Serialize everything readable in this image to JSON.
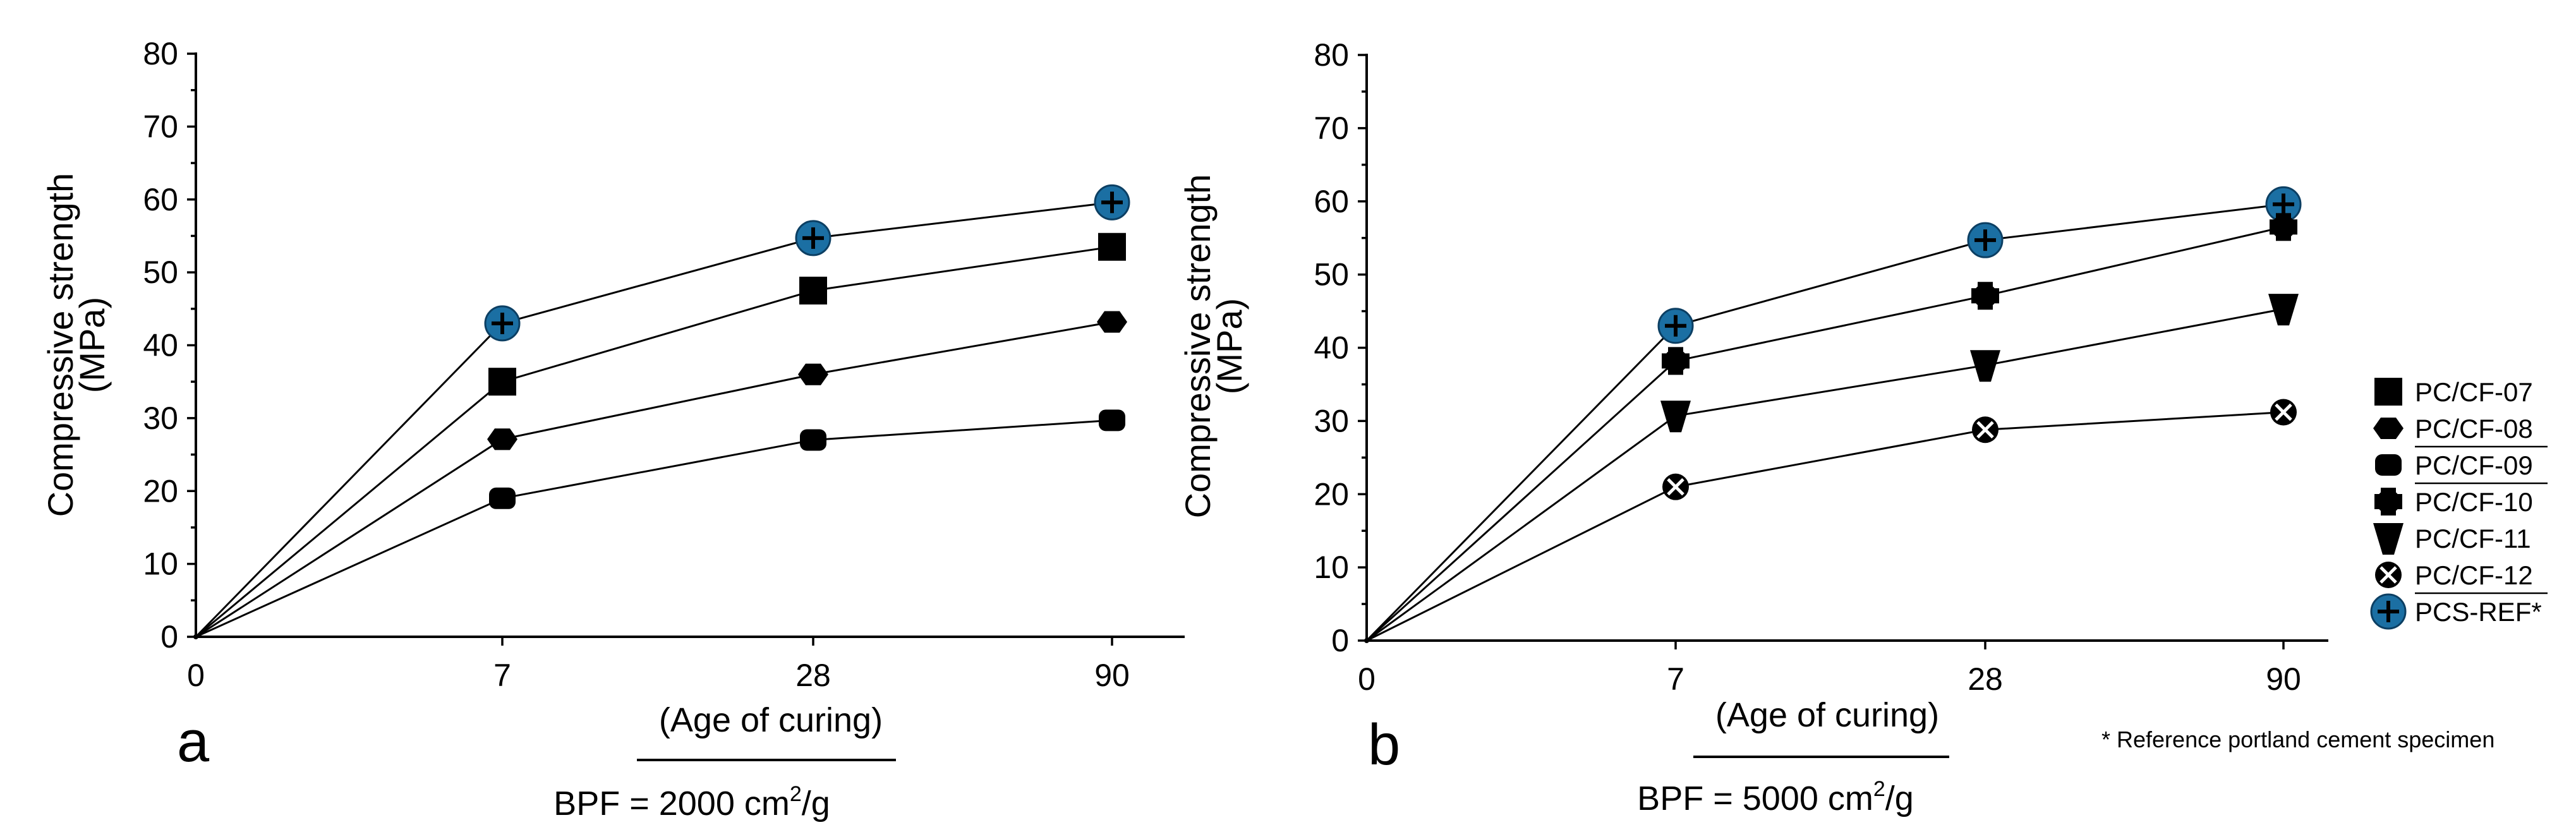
{
  "chart_data": [
    {
      "type": "line",
      "panel_label": "a",
      "caption": "BPF = 2000 cm²/g",
      "caption_parts": {
        "lead": "BPF = 2000 cm",
        "sup": "2",
        "tail": "/g"
      },
      "xlabel": "(Age of curing)",
      "ylabel": [
        "Compressive strength",
        "(MPa)"
      ],
      "categories": [
        "0",
        "7",
        "28",
        "90"
      ],
      "ylim": [
        0,
        80
      ],
      "yticks": [
        "0",
        "10",
        "20",
        "30",
        "40",
        "50",
        "60",
        "70",
        "80"
      ],
      "series": [
        {
          "name": "PCS-REF*",
          "marker": "ref",
          "values": [
            0,
            43,
            54.7,
            59.6
          ]
        },
        {
          "name": "PC/CF-07",
          "marker": "square",
          "values": [
            0,
            35,
            47.5,
            53.5
          ]
        },
        {
          "name": "PC/CF-08",
          "marker": "hexagon",
          "values": [
            0,
            27.1,
            36,
            43.2
          ]
        },
        {
          "name": "PC/CF-09",
          "marker": "roundrect",
          "values": [
            0,
            19,
            27,
            29.7
          ]
        }
      ]
    },
    {
      "type": "line",
      "panel_label": "b",
      "caption": "BPF = 5000 cm²/g",
      "caption_parts": {
        "lead": "BPF = 5000 cm",
        "sup": "2",
        "tail": "/g"
      },
      "xlabel": "(Age of curing)",
      "ylabel": [
        "Compressive strength",
        "(MPa)"
      ],
      "categories": [
        "0",
        "7",
        "28",
        "90"
      ],
      "ylim": [
        0,
        80
      ],
      "yticks": [
        "0",
        "10",
        "20",
        "30",
        "40",
        "50",
        "60",
        "70",
        "80"
      ],
      "series": [
        {
          "name": "PCS-REF*",
          "marker": "ref",
          "values": [
            0,
            43,
            54.7,
            59.6
          ]
        },
        {
          "name": "PC/CF-10",
          "marker": "plus",
          "values": [
            0,
            38.2,
            47.1,
            56.5
          ]
        },
        {
          "name": "PC/CF-11",
          "marker": "triangle",
          "values": [
            0,
            30.7,
            37.6,
            45.3
          ]
        },
        {
          "name": "PC/CF-12",
          "marker": "xcircle",
          "values": [
            0,
            21,
            28.8,
            31.2
          ]
        }
      ]
    }
  ],
  "legend": {
    "items": [
      {
        "label": "PC/CF-07",
        "marker": "square"
      },
      {
        "label": "PC/CF-08",
        "marker": "hexagon"
      },
      {
        "label": "PC/CF-09",
        "marker": "roundrect"
      },
      {
        "label": "PC/CF-10",
        "marker": "plus"
      },
      {
        "label": "PC/CF-11",
        "marker": "triangle"
      },
      {
        "label": "PC/CF-12",
        "marker": "xcircle"
      },
      {
        "label": "PCS-REF*",
        "marker": "ref"
      }
    ],
    "footnote": "* Reference portland cement specimen"
  },
  "colors": {
    "axis": "#000000",
    "marker": "#000000",
    "ref_fill": "#1b6fa3",
    "ref_ring": "#0c3f63"
  }
}
